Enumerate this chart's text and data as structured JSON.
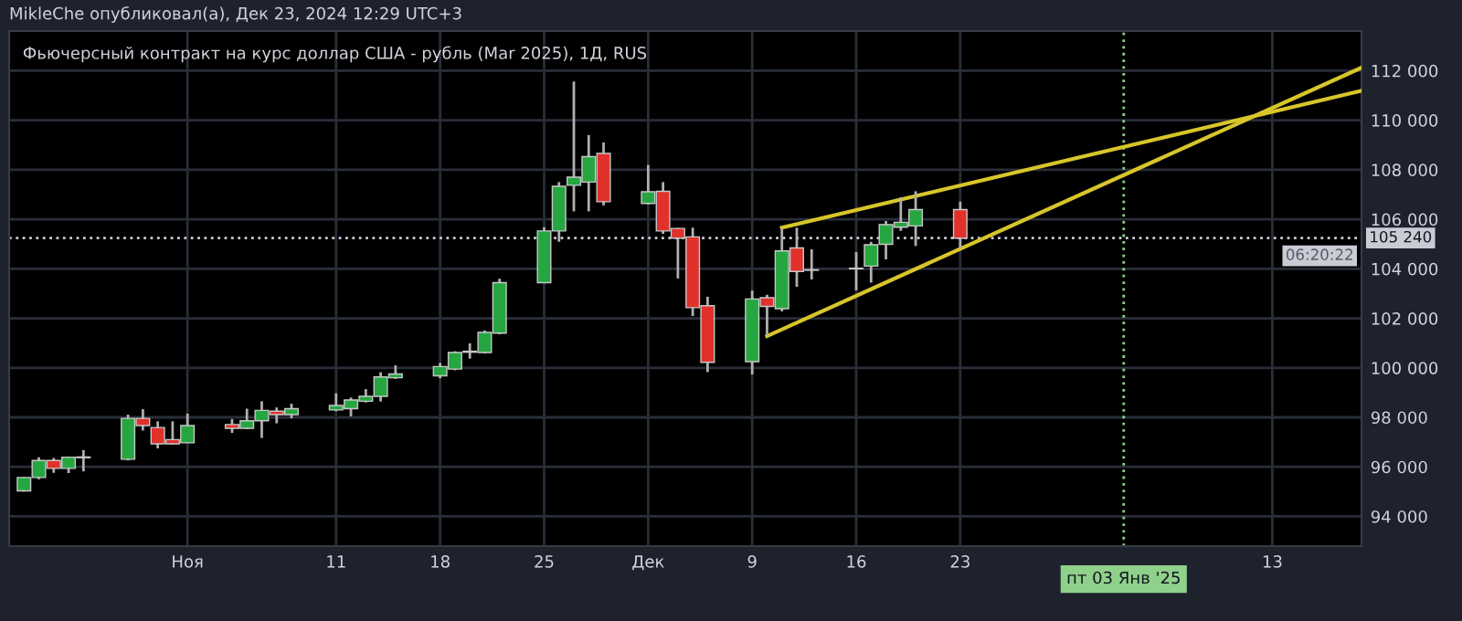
{
  "chart_data": {
    "type": "candlestick",
    "title": "Фьючерсный контракт на курс доллар США - рубль (Mar 2025), 1Д, RUS",
    "annotations": [
      "MikleChe опубликовал(а), Дек 23, 2024 12:29 UTC+3",
      "06:20:22"
    ],
    "x": [
      "2024-10-21",
      "2024-10-22",
      "2024-10-23",
      "2024-10-24",
      "2024-10-25",
      "2024-10-28",
      "2024-10-29",
      "2024-10-30",
      "2024-10-31",
      "2024-11-01",
      "2024-11-04",
      "2024-11-05",
      "2024-11-06",
      "2024-11-07",
      "2024-11-08",
      "2024-11-11",
      "2024-11-12",
      "2024-11-13",
      "2024-11-14",
      "2024-11-15",
      "2024-11-18",
      "2024-11-19",
      "2024-11-20",
      "2024-11-21",
      "2024-11-22",
      "2024-11-25",
      "2024-11-26",
      "2024-11-27",
      "2024-11-28",
      "2024-11-29",
      "2024-12-02",
      "2024-12-03",
      "2024-12-04",
      "2024-12-05",
      "2024-12-06",
      "2024-12-09",
      "2024-12-10",
      "2024-12-11",
      "2024-12-12",
      "2024-12-13",
      "2024-12-16",
      "2024-12-17",
      "2024-12-18",
      "2024-12-19",
      "2024-12-20",
      "2024-12-23"
    ],
    "ohlc": [
      [
        95030,
        95600,
        95000,
        95570
      ],
      [
        95570,
        96390,
        95500,
        96260
      ],
      [
        96260,
        96360,
        95760,
        95940
      ],
      [
        95940,
        96420,
        95750,
        96390
      ],
      [
        96400,
        96680,
        95820,
        96370
      ],
      [
        96310,
        98110,
        96260,
        97960
      ],
      [
        97960,
        98330,
        97470,
        97670
      ],
      [
        97590,
        97840,
        96750,
        96930
      ],
      [
        97100,
        97840,
        96900,
        96930
      ],
      [
        96970,
        98150,
        96970,
        97670
      ],
      [
        97710,
        97930,
        97370,
        97560
      ],
      [
        97560,
        98350,
        97520,
        97860
      ],
      [
        97860,
        98650,
        97170,
        98280
      ],
      [
        98250,
        98400,
        97760,
        98110
      ],
      [
        98110,
        98550,
        97960,
        98350
      ],
      [
        98300,
        98970,
        98250,
        98480
      ],
      [
        98350,
        98800,
        98040,
        98700
      ],
      [
        98650,
        99140,
        98600,
        98850
      ],
      [
        98850,
        99820,
        98640,
        99630
      ],
      [
        99600,
        100100,
        99550,
        99750
      ],
      [
        99680,
        100200,
        99580,
        100050
      ],
      [
        99950,
        100670,
        99900,
        100620
      ],
      [
        100630,
        100990,
        100370,
        100670
      ],
      [
        100620,
        101510,
        100580,
        101430
      ],
      [
        101400,
        103600,
        101360,
        103440
      ],
      [
        103440,
        105680,
        103420,
        105530
      ],
      [
        105530,
        107500,
        105090,
        107330
      ],
      [
        107370,
        111560,
        106320,
        107700
      ],
      [
        107500,
        109400,
        106320,
        108530
      ],
      [
        108660,
        109100,
        106560,
        106710
      ],
      [
        106640,
        108190,
        106600,
        107110
      ],
      [
        107130,
        107500,
        105410,
        105530
      ],
      [
        105630,
        105650,
        103610,
        105240
      ],
      [
        105290,
        105660,
        102090,
        102430
      ],
      [
        102510,
        102870,
        99830,
        100220
      ],
      [
        100250,
        103120,
        99730,
        102780
      ],
      [
        102830,
        102950,
        101300,
        102480
      ],
      [
        102390,
        105630,
        102280,
        104720
      ],
      [
        104840,
        105660,
        103270,
        103890
      ],
      [
        103960,
        104790,
        103570,
        103940
      ],
      [
        104000,
        104670,
        103130,
        104020
      ],
      [
        104110,
        105090,
        103440,
        104970
      ],
      [
        104990,
        105930,
        104380,
        105780
      ],
      [
        105680,
        106890,
        105530,
        105880
      ],
      [
        105730,
        107130,
        104920,
        106390
      ],
      [
        106390,
        106710,
        104840,
        105240
      ]
    ],
    "colors": [
      "#26a641",
      "#26a641",
      "#e0312b",
      "#26a641",
      "#e0312b",
      "#26a641",
      "#e0312b",
      "#e0312b",
      "#e0312b",
      "#26a641",
      "#e0312b",
      "#26a641",
      "#26a641",
      "#e0312b",
      "#26a641",
      "#26a641",
      "#26a641",
      "#26a641",
      "#26a641",
      "#26a641",
      "#26a641",
      "#26a641",
      "#26a641",
      "#26a641",
      "#26a641",
      "#26a641",
      "#26a641",
      "#26a641",
      "#26a641",
      "#e0312b",
      "#26a641",
      "#e0312b",
      "#e0312b",
      "#e0312b",
      "#e0312b",
      "#26a641",
      "#e0312b",
      "#26a641",
      "#e0312b",
      "#e0312b",
      "#26a641",
      "#26a641",
      "#26a641",
      "#26a641",
      "#26a641",
      "#e0312b"
    ],
    "series": [
      {
        "type": "line",
        "color": "#d8c52a",
        "x": [
          "2024-12-11",
          "2025-01-19"
        ],
        "values": [
          105660,
          111190
        ]
      },
      {
        "type": "line",
        "color": "#d8c52a",
        "x": [
          "2024-12-10",
          "2025-01-19"
        ],
        "values": [
          101280,
          112120
        ]
      }
    ],
    "xlim": [
      "2024-10-20",
      "2025-01-19"
    ],
    "xticks": [
      {
        "value": "2024-11-01",
        "label": "Ноя"
      },
      {
        "value": "2024-11-11",
        "label": "11"
      },
      {
        "value": "2024-11-18",
        "label": "18"
      },
      {
        "value": "2024-11-25",
        "label": "25"
      },
      {
        "value": "2024-12-02",
        "label": "Дек"
      },
      {
        "value": "2024-12-09",
        "label": "9"
      },
      {
        "value": "2024-12-16",
        "label": "16"
      },
      {
        "value": "2024-12-23",
        "label": "23"
      },
      {
        "value": "2025-01-13",
        "label": "13"
      }
    ],
    "ylim": [
      92800,
      113600
    ],
    "yticks": [
      {
        "value": 94000,
        "label": "94 000"
      },
      {
        "value": 96000,
        "label": "96 000"
      },
      {
        "value": 98000,
        "label": "98 000"
      },
      {
        "value": 100000,
        "label": "100 000"
      },
      {
        "value": 102000,
        "label": "102 000"
      },
      {
        "value": 104000,
        "label": "104 000"
      },
      {
        "value": 106000,
        "label": "106 000"
      },
      {
        "value": 108000,
        "label": "108 000"
      },
      {
        "value": 110000,
        "label": "110 000"
      },
      {
        "value": 112000,
        "label": "112 000"
      }
    ],
    "ref_lines": [
      {
        "axis": "y",
        "value": 105240,
        "label": "105 240",
        "color": "#c8ccd4",
        "line_style": "dotted"
      },
      {
        "axis": "x",
        "value": "2025-01-03",
        "label": "пт 03 Янв '25",
        "color": "#8fd18a",
        "line_style": "dotted"
      }
    ],
    "grid": true,
    "marker": "none"
  }
}
